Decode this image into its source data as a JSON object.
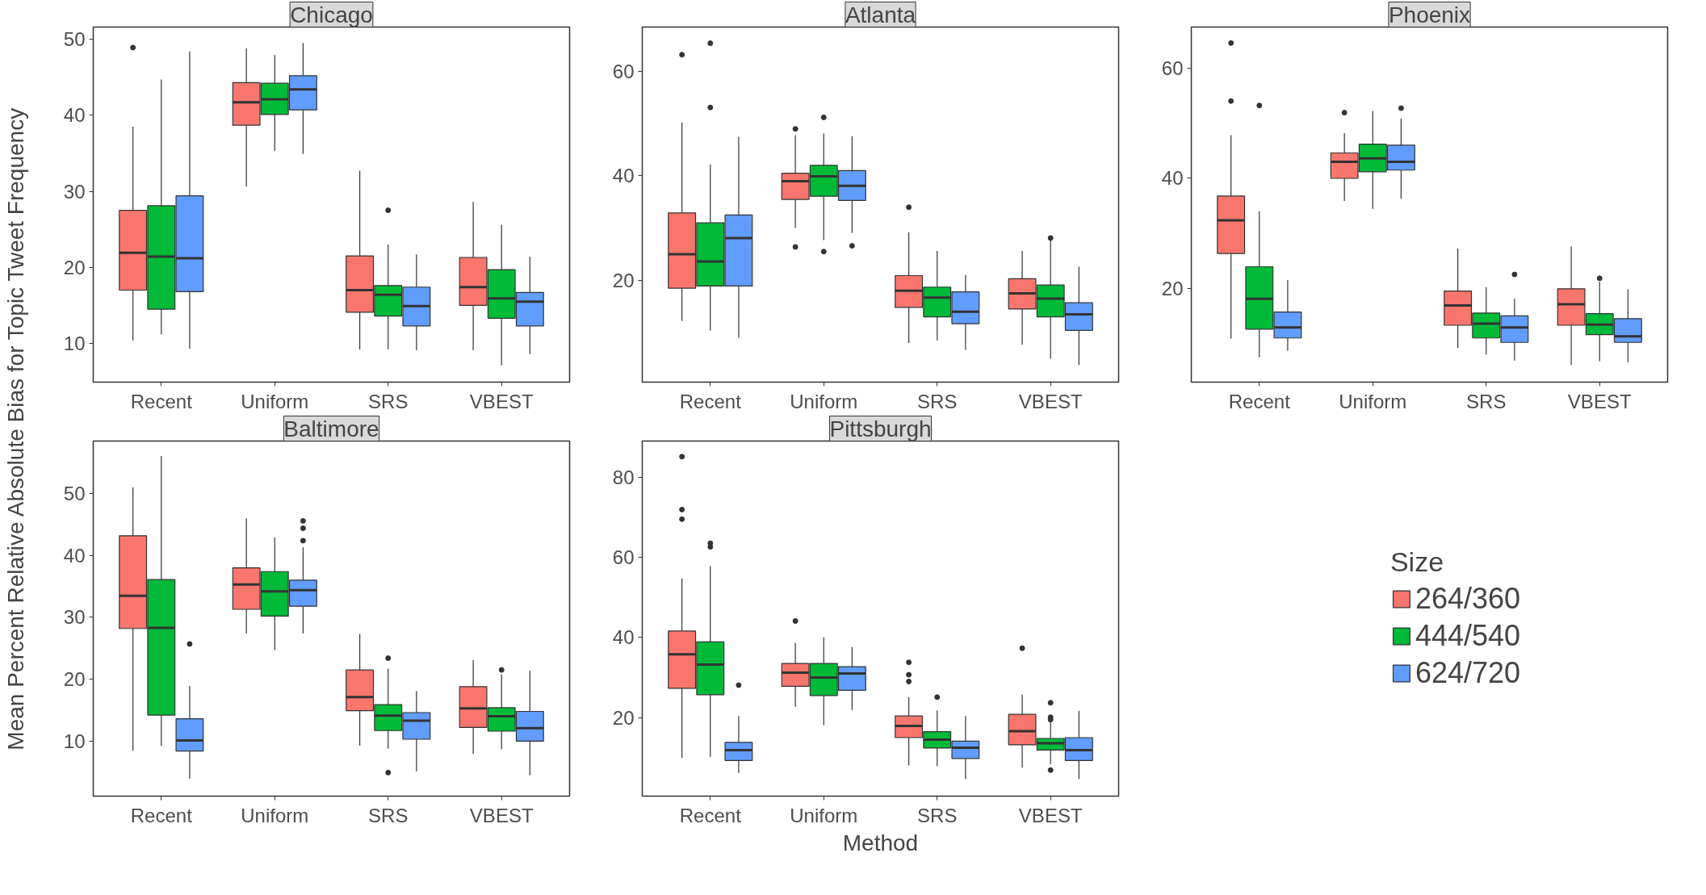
{
  "chart_data": [
    {
      "type": "box",
      "title": "Chicago",
      "ylabel": "Mean Percent Relative Absolute Bias for Topic Tweet Frequency",
      "legend_title": "Size",
      "legend": "right",
      "categories": [
        "Recent",
        "Uniform",
        "SRS",
        "VBEST"
      ],
      "ylim": [
        4.9,
        51.6
      ],
      "yticks": [
        10,
        20,
        30,
        40,
        50
      ],
      "series": [
        {
          "name": "264/360",
          "color": "#f8766d",
          "boxes": [
            {
              "low": 10.4,
              "q1": 17.0,
              "median": 21.9,
              "q3": 27.5,
              "high": 38.5,
              "outliers": [
                48.9
              ]
            },
            {
              "low": 30.6,
              "q1": 38.7,
              "median": 41.7,
              "q3": 44.3,
              "high": 48.8
            },
            {
              "low": 9.2,
              "q1": 14.1,
              "median": 17.0,
              "q3": 21.5,
              "high": 32.7
            },
            {
              "low": 9.1,
              "q1": 15.0,
              "median": 17.4,
              "q3": 21.3,
              "high": 28.6
            }
          ]
        },
        {
          "name": "444/540",
          "color": "#00ba38",
          "boxes": [
            {
              "low": 11.2,
              "q1": 14.5,
              "median": 21.4,
              "q3": 28.1,
              "high": 44.7
            },
            {
              "low": 35.3,
              "q1": 40.1,
              "median": 42.1,
              "q3": 44.2,
              "high": 47.9
            },
            {
              "low": 9.2,
              "q1": 13.6,
              "median": 16.4,
              "q3": 17.6,
              "high": 23.0,
              "outliers": [
                27.5
              ]
            },
            {
              "low": 7.1,
              "q1": 13.3,
              "median": 15.9,
              "q3": 19.7,
              "high": 25.6
            }
          ]
        },
        {
          "name": "624/720",
          "color": "#619cff",
          "boxes": [
            {
              "low": 9.3,
              "q1": 16.8,
              "median": 21.2,
              "q3": 29.4,
              "high": 48.4
            },
            {
              "low": 34.9,
              "q1": 40.7,
              "median": 43.4,
              "q3": 45.2,
              "high": 49.5
            },
            {
              "low": 9.1,
              "q1": 12.3,
              "median": 14.9,
              "q3": 17.4,
              "high": 21.7
            },
            {
              "low": 8.6,
              "q1": 12.3,
              "median": 15.5,
              "q3": 16.7,
              "high": 21.4
            }
          ]
        }
      ]
    },
    {
      "type": "box",
      "title": "Atlanta",
      "categories": [
        "Recent",
        "Uniform",
        "SRS",
        "VBEST"
      ],
      "ylim": [
        0.5,
        68.5
      ],
      "yticks": [
        20,
        40,
        60
      ],
      "series": [
        {
          "color": "#f8766d",
          "boxes": [
            {
              "low": 12.2,
              "q1": 18.5,
              "median": 25.0,
              "q3": 32.9,
              "high": 50.2,
              "outliers": [
                63.2
              ]
            },
            {
              "low": 30.0,
              "q1": 35.5,
              "median": 39.0,
              "q3": 40.5,
              "high": 47.8,
              "outliers": [
                49.0,
                26.4
              ]
            },
            {
              "low": 8.0,
              "q1": 14.8,
              "median": 18.0,
              "q3": 20.9,
              "high": 29.2,
              "outliers": [
                34.0
              ]
            },
            {
              "low": 7.7,
              "q1": 14.5,
              "median": 17.5,
              "q3": 20.3,
              "high": 25.6
            }
          ]
        },
        {
          "color": "#00ba38",
          "boxes": [
            {
              "low": 10.4,
              "q1": 18.9,
              "median": 23.6,
              "q3": 31.0,
              "high": 42.2,
              "outliers": [
                65.4,
                53.1
              ]
            },
            {
              "low": 27.7,
              "q1": 36.1,
              "median": 39.9,
              "q3": 42.0,
              "high": 48.1,
              "outliers": [
                51.2,
                25.5
              ]
            },
            {
              "low": 8.5,
              "q1": 13.0,
              "median": 16.7,
              "q3": 18.7,
              "high": 25.6
            },
            {
              "low": 5.0,
              "q1": 13.0,
              "median": 16.5,
              "q3": 19.1,
              "high": 27.7,
              "outliers": [
                28.1
              ]
            }
          ]
        },
        {
          "color": "#619cff",
          "boxes": [
            {
              "low": 9.0,
              "q1": 18.9,
              "median": 28.1,
              "q3": 32.5,
              "high": 47.5
            },
            {
              "low": 29.1,
              "q1": 35.3,
              "median": 38.1,
              "q3": 41.0,
              "high": 47.6,
              "outliers": [
                26.6
              ]
            },
            {
              "low": 6.7,
              "q1": 11.7,
              "median": 14.0,
              "q3": 17.8,
              "high": 21.0
            },
            {
              "low": 3.8,
              "q1": 10.4,
              "median": 13.5,
              "q3": 15.7,
              "high": 22.6
            }
          ]
        }
      ]
    },
    {
      "type": "box",
      "title": "Phoenix",
      "categories": [
        "Recent",
        "Uniform",
        "SRS",
        "VBEST"
      ],
      "ylim": [
        3.1,
        67.4
      ],
      "yticks": [
        20,
        40,
        60
      ],
      "series": [
        {
          "color": "#f8766d",
          "boxes": [
            {
              "low": 11.0,
              "q1": 26.4,
              "median": 32.4,
              "q3": 36.8,
              "high": 47.8,
              "outliers": [
                64.5,
                54.0
              ]
            },
            {
              "low": 35.9,
              "q1": 40.0,
              "median": 43.0,
              "q3": 44.6,
              "high": 48.2,
              "outliers": [
                51.9
              ]
            },
            {
              "low": 9.3,
              "q1": 13.4,
              "median": 17.0,
              "q3": 19.6,
              "high": 27.3
            },
            {
              "low": 6.2,
              "q1": 13.4,
              "median": 17.2,
              "q3": 20.0,
              "high": 27.7
            }
          ]
        },
        {
          "color": "#00ba38",
          "boxes": [
            {
              "low": 7.6,
              "q1": 12.7,
              "median": 18.2,
              "q3": 24.0,
              "high": 34.0,
              "outliers": [
                53.2
              ]
            },
            {
              "low": 34.5,
              "q1": 41.2,
              "median": 43.6,
              "q3": 46.2,
              "high": 52.2
            },
            {
              "low": 8.1,
              "q1": 11.1,
              "median": 13.7,
              "q3": 15.6,
              "high": 20.3
            },
            {
              "low": 6.9,
              "q1": 11.7,
              "median": 13.5,
              "q3": 15.5,
              "high": 21.3,
              "outliers": [
                21.9
              ]
            }
          ]
        },
        {
          "color": "#619cff",
          "boxes": [
            {
              "low": 8.8,
              "q1": 11.1,
              "median": 13.0,
              "q3": 15.8,
              "high": 21.6
            },
            {
              "low": 36.3,
              "q1": 41.5,
              "median": 43.0,
              "q3": 46.0,
              "high": 50.8,
              "outliers": [
                52.7
              ]
            },
            {
              "low": 7.0,
              "q1": 10.3,
              "median": 13.0,
              "q3": 15.1,
              "high": 18.2,
              "outliers": [
                22.6
              ]
            },
            {
              "low": 6.7,
              "q1": 10.3,
              "median": 11.4,
              "q3": 14.6,
              "high": 19.9
            }
          ]
        }
      ]
    },
    {
      "type": "box",
      "title": "Baltimore",
      "categories": [
        "Recent",
        "Uniform",
        "SRS",
        "VBEST"
      ],
      "ylim": [
        1.1,
        58.5
      ],
      "yticks": [
        10,
        20,
        30,
        40,
        50
      ],
      "series": [
        {
          "color": "#f8766d",
          "boxes": [
            {
              "low": 8.4,
              "q1": 28.2,
              "median": 33.5,
              "q3": 43.2,
              "high": 51.0
            },
            {
              "low": 27.4,
              "q1": 31.3,
              "median": 35.3,
              "q3": 38.0,
              "high": 46.0
            },
            {
              "low": 9.3,
              "q1": 14.9,
              "median": 17.1,
              "q3": 21.5,
              "high": 27.3
            },
            {
              "low": 7.9,
              "q1": 12.2,
              "median": 15.3,
              "q3": 18.8,
              "high": 23.1
            }
          ]
        },
        {
          "color": "#00ba38",
          "boxes": [
            {
              "low": 9.2,
              "q1": 14.2,
              "median": 28.3,
              "q3": 36.1,
              "high": 56.1
            },
            {
              "low": 24.7,
              "q1": 30.2,
              "median": 34.2,
              "q3": 37.4,
              "high": 42.9
            },
            {
              "low": 8.8,
              "q1": 11.7,
              "median": 14.1,
              "q3": 15.9,
              "high": 21.7,
              "outliers": [
                23.4,
                4.9
              ]
            },
            {
              "low": 8.7,
              "q1": 11.6,
              "median": 14.0,
              "q3": 15.4,
              "high": 20.8,
              "outliers": [
                21.5
              ]
            }
          ]
        },
        {
          "color": "#619cff",
          "boxes": [
            {
              "low": 3.9,
              "q1": 8.4,
              "median": 10.1,
              "q3": 13.6,
              "high": 18.9,
              "outliers": [
                25.7
              ]
            },
            {
              "low": 27.4,
              "q1": 31.8,
              "median": 34.4,
              "q3": 36.0,
              "high": 41.3,
              "outliers": [
                45.6,
                44.4,
                42.4
              ]
            },
            {
              "low": 5.1,
              "q1": 10.3,
              "median": 13.3,
              "q3": 14.6,
              "high": 18.1
            },
            {
              "low": 4.5,
              "q1": 10.0,
              "median": 12.1,
              "q3": 14.8,
              "high": 21.4
            }
          ]
        }
      ]
    },
    {
      "type": "box",
      "title": "Pittsburgh",
      "xlabel": "Method",
      "categories": [
        "Recent",
        "Uniform",
        "SRS",
        "VBEST"
      ],
      "ylim": [
        0.4,
        89.0
      ],
      "yticks": [
        20,
        40,
        60,
        80
      ],
      "series": [
        {
          "color": "#f8766d",
          "boxes": [
            {
              "low": 9.9,
              "q1": 27.3,
              "median": 35.8,
              "q3": 41.6,
              "high": 54.7,
              "outliers": [
                85.1,
                71.9,
                69.5
              ]
            },
            {
              "low": 22.7,
              "q1": 27.8,
              "median": 31.2,
              "q3": 33.5,
              "high": 38.6,
              "outliers": [
                44.1
              ]
            },
            {
              "low": 8.1,
              "q1": 15.0,
              "median": 17.9,
              "q3": 20.4,
              "high": 25.1,
              "outliers": [
                33.8,
                30.7,
                29.0
              ]
            },
            {
              "low": 7.5,
              "q1": 13.2,
              "median": 16.6,
              "q3": 20.8,
              "high": 25.7,
              "outliers": [
                37.3
              ]
            }
          ]
        },
        {
          "color": "#00ba38",
          "boxes": [
            {
              "low": 10.2,
              "q1": 25.7,
              "median": 33.2,
              "q3": 38.9,
              "high": 57.8,
              "outliers": [
                63.5,
                62.6
              ]
            },
            {
              "low": 18.1,
              "q1": 25.5,
              "median": 30.0,
              "q3": 33.5,
              "high": 40.0
            },
            {
              "low": 7.9,
              "q1": 12.4,
              "median": 14.5,
              "q3": 16.5,
              "high": 21.8,
              "outliers": [
                25.1
              ]
            },
            {
              "low": 8.4,
              "q1": 11.9,
              "median": 13.6,
              "q3": 14.8,
              "high": 19.0,
              "outliers": [
                23.7,
                20.1,
                19.5,
                6.9
              ]
            }
          ]
        },
        {
          "color": "#619cff",
          "boxes": [
            {
              "low": 6.2,
              "q1": 9.3,
              "median": 11.9,
              "q3": 13.8,
              "high": 20.4,
              "outliers": [
                28.1
              ]
            },
            {
              "low": 21.9,
              "q1": 26.8,
              "median": 31.0,
              "q3": 32.7,
              "high": 37.6
            },
            {
              "low": 4.7,
              "q1": 9.8,
              "median": 12.5,
              "q3": 14.1,
              "high": 20.4
            },
            {
              "low": 4.7,
              "q1": 9.3,
              "median": 11.9,
              "q3": 15.0,
              "high": 21.7
            }
          ]
        }
      ]
    }
  ]
}
